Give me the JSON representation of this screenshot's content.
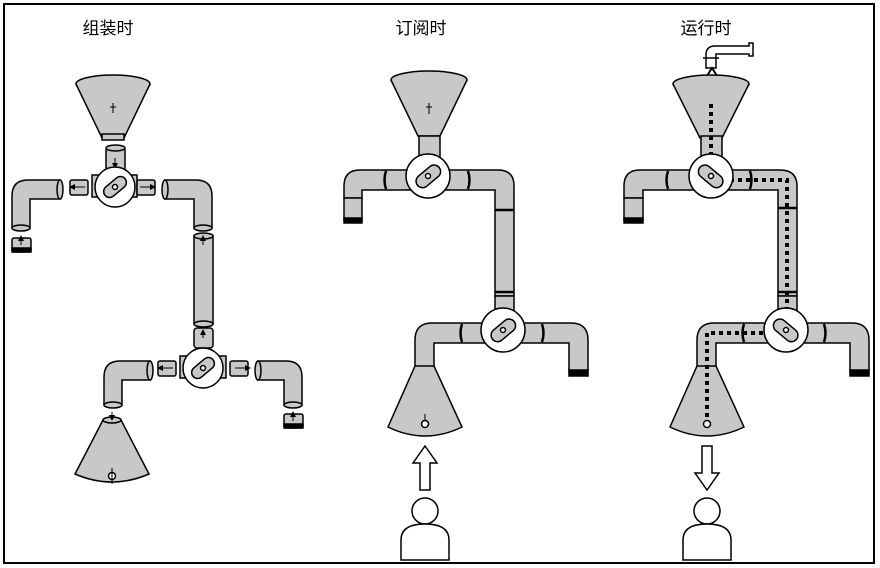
{
  "panels": [
    {
      "id": "assembly",
      "title": "组装时"
    },
    {
      "id": "subscription",
      "title": "订阅时"
    },
    {
      "id": "runtime",
      "title": "运行时"
    }
  ],
  "colors": {
    "pipe_fill": "#c8c8c8",
    "stroke": "#000000",
    "background": "#ffffff"
  }
}
